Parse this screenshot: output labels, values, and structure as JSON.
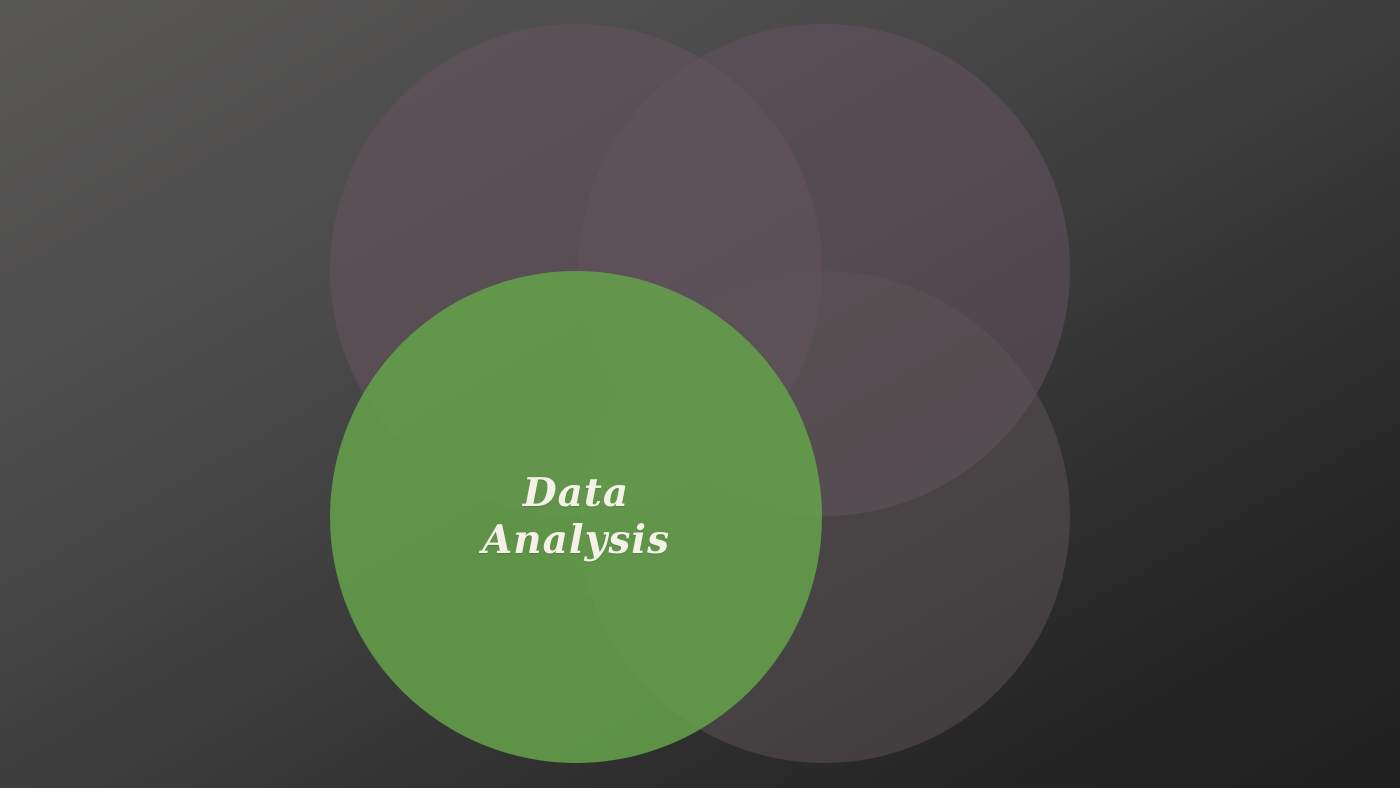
{
  "colors": {
    "background_light": "#595856",
    "background_dark": "#1f1f1f",
    "circle_inactive": "#62525a",
    "circle_active": "#64a24b",
    "label_text": "#f4f1e6"
  },
  "diagram": {
    "active_label": {
      "line1": "Data",
      "line2": "Analysis"
    }
  }
}
